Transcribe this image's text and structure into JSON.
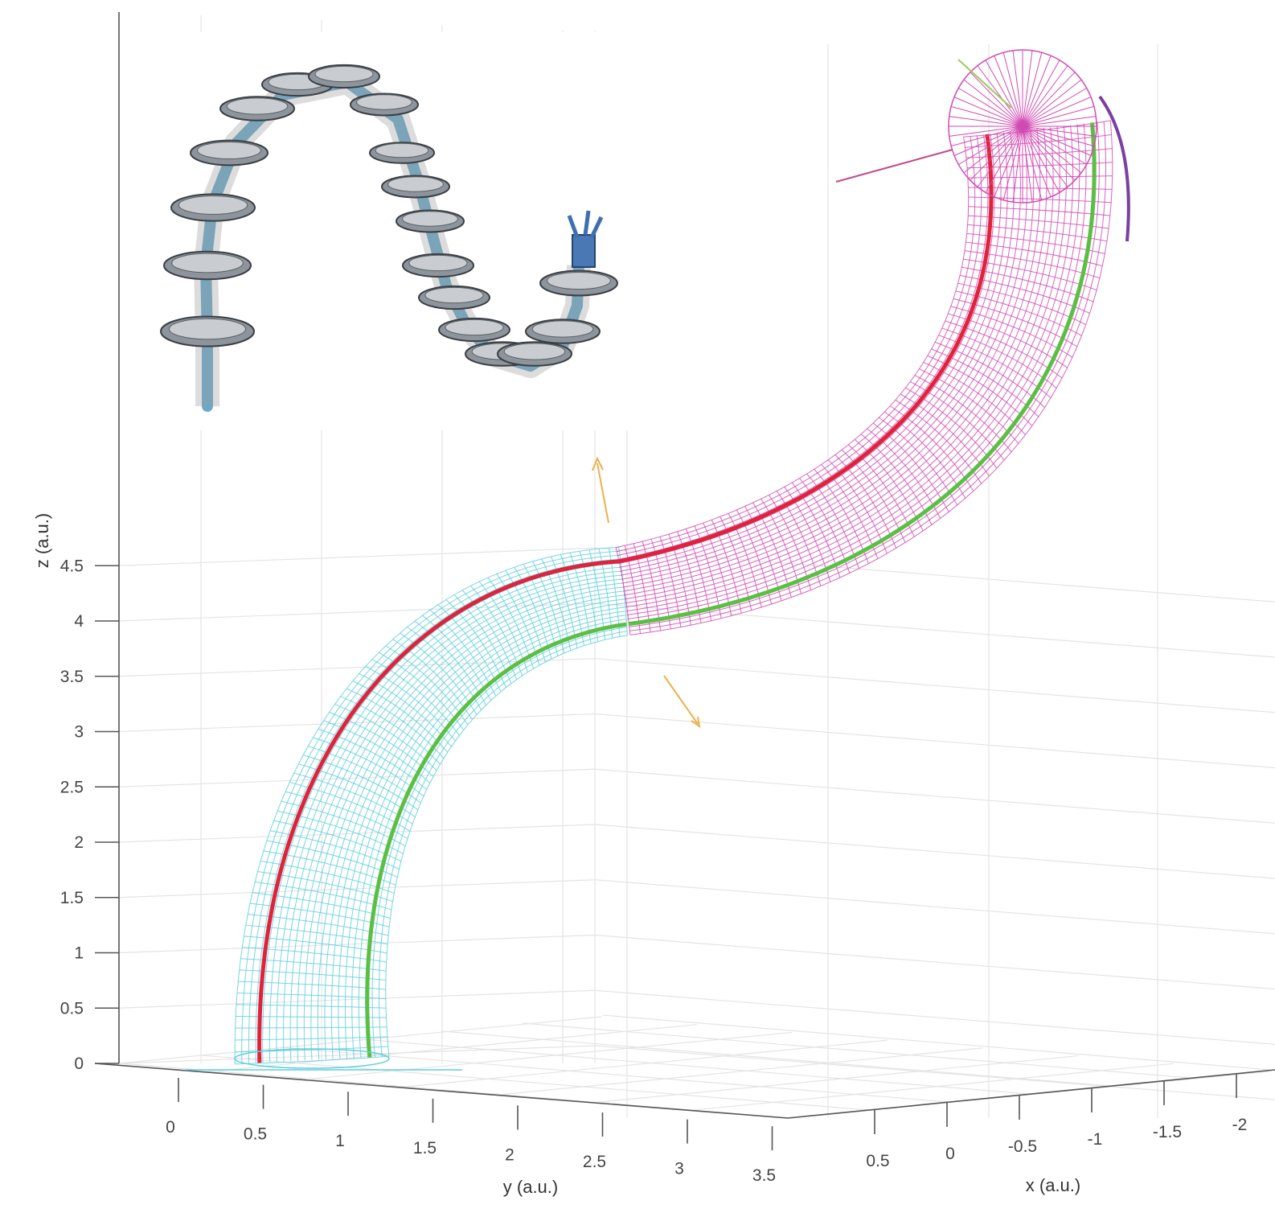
{
  "chart_data": {
    "type": "3d-surface",
    "title": "",
    "xlabel": "x (a.u.)",
    "ylabel": "y (a.u.)",
    "zlabel": "z (a.u.)",
    "x_ticks": [
      "0.5",
      "0",
      "-0.5",
      "-1",
      "-1.5",
      "-2"
    ],
    "y_ticks": [
      "0",
      "0.5",
      "1",
      "1.5",
      "2",
      "2.5",
      "3",
      "3.5"
    ],
    "z_ticks": [
      "0",
      "0.5",
      "1",
      "1.5",
      "2",
      "2.5",
      "3",
      "3.5",
      "4",
      "4.5"
    ],
    "xlim": [
      0.5,
      -2
    ],
    "ylim": [
      0,
      3.5
    ],
    "zlim": [
      0,
      4.5
    ],
    "grid": true,
    "inset": "continuum-robot-rendering",
    "series": [
      {
        "segment": 1,
        "surface_color": "#5fcfdc",
        "centerline": {
          "z": [
            0,
            0.5,
            1,
            1.5,
            2,
            2.35
          ],
          "y": [
            0.6,
            0.65,
            0.85,
            1.2,
            1.7,
            2.1
          ]
        }
      },
      {
        "segment": 2,
        "surface_color": "#d14bb3",
        "centerline": {
          "z": [
            2.35,
            2.7,
            3.1,
            3.6,
            4.1,
            4.3
          ],
          "y": [
            2.1,
            2.6,
            3.0,
            3.3,
            3.45,
            3.5
          ]
        }
      }
    ],
    "line_colors": {
      "red": "#e0223a",
      "green": "#5cbf45",
      "tip_axis": "#7a3fa0",
      "normal_arrow": "#e9b24a",
      "tip_arrow": "#c44a8a",
      "tip_arrow_green": "#9ec95a"
    }
  }
}
